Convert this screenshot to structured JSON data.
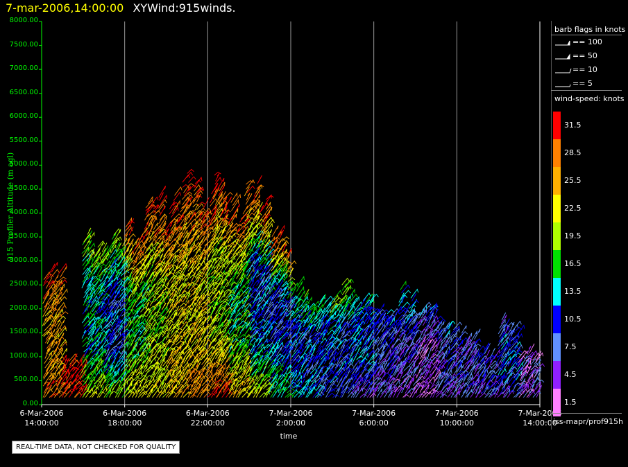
{
  "header": {
    "datetime": "7-mar-2006,14:00:00",
    "plot_name": "XYWind:915winds."
  },
  "notice": "REAL-TIME DATA, NOT CHECKED FOR QUALITY",
  "footer_path": "iss-mapr/prof915h",
  "chart_data": {
    "type": "scatter",
    "ylabel": "915 Profiler Altitude (m agl)",
    "xlabel": "time",
    "ylim": [
      0,
      8000
    ],
    "yticks": [
      "0.00",
      "500.00",
      "1000.00",
      "1500.00",
      "2000.00",
      "2500.00",
      "3000.00",
      "3500.00",
      "4000.00",
      "4500.00",
      "5000.00",
      "5500.00",
      "6000.00",
      "6500.00",
      "7000.00",
      "7500.00",
      "8000.00"
    ],
    "xlim_hours": [
      0,
      24
    ],
    "xticks": [
      {
        "date": "6-Mar-2006",
        "time": "14:00:00"
      },
      {
        "date": "6-Mar-2006",
        "time": "18:00:00"
      },
      {
        "date": "6-Mar-2006",
        "time": "22:00:00"
      },
      {
        "date": "7-Mar-2006",
        "time": "2:00:00"
      },
      {
        "date": "7-Mar-2006",
        "time": "6:00:00"
      },
      {
        "date": "7-Mar-2006",
        "time": "10:00:00"
      },
      {
        "date": "7-Mar-2006",
        "time": "14:00:00"
      }
    ],
    "grid": "vertical",
    "profiles": [
      {
        "time": "6-Mar-2006 14:00",
        "top": 3000,
        "low_speed": 28.5,
        "mid_speed": 25.5,
        "high_speed": 31.5
      },
      {
        "time": "6-Mar-2006 15:00",
        "top": 900,
        "low_speed": 31.5,
        "mid_speed": 31.5,
        "high_speed": 31.5
      },
      {
        "time": "6-Mar-2006 16:00",
        "top": 3400,
        "low_speed": 22.5,
        "mid_speed": 13.5,
        "high_speed": 19.5
      },
      {
        "time": "6-Mar-2006 17:00",
        "top": 3300,
        "low_speed": 19.5,
        "mid_speed": 10.5,
        "high_speed": 19.5
      },
      {
        "time": "6-Mar-2006 18:00",
        "top": 3600,
        "low_speed": 22.5,
        "mid_speed": 16.5,
        "high_speed": 31.5
      },
      {
        "time": "6-Mar-2006 19:00",
        "top": 4100,
        "low_speed": 22.5,
        "mid_speed": 19.5,
        "high_speed": 31.5
      },
      {
        "time": "6-Mar-2006 20:00",
        "top": 4300,
        "low_speed": 25.5,
        "mid_speed": 22.5,
        "high_speed": 31.5
      },
      {
        "time": "6-Mar-2006 21:00",
        "top": 4550,
        "low_speed": 28.5,
        "mid_speed": 22.5,
        "high_speed": 31.5
      },
      {
        "time": "6-Mar-2006 22:00",
        "top": 4600,
        "low_speed": 31.5,
        "mid_speed": 19.5,
        "high_speed": 31.5
      },
      {
        "time": "6-Mar-2006 23:00",
        "top": 4300,
        "low_speed": 25.5,
        "mid_speed": 16.5,
        "high_speed": 31.5
      },
      {
        "time": "7-Mar-2006 00:00",
        "top": 4400,
        "low_speed": 22.5,
        "mid_speed": 10.5,
        "high_speed": 31.5
      },
      {
        "time": "7-Mar-2006 01:00",
        "top": 3400,
        "low_speed": 16.5,
        "mid_speed": 10.5,
        "high_speed": 31.5
      },
      {
        "time": "7-Mar-2006 02:00",
        "top": 2300,
        "low_speed": 13.5,
        "mid_speed": 10.5,
        "high_speed": 16.5
      },
      {
        "time": "7-Mar-2006 03:00",
        "top": 2200,
        "low_speed": 10.5,
        "mid_speed": 10.5,
        "high_speed": 16.5
      },
      {
        "time": "7-Mar-2006 04:00",
        "top": 2500,
        "low_speed": 7.5,
        "mid_speed": 10.5,
        "high_speed": 19.5
      },
      {
        "time": "7-Mar-2006 05:00",
        "top": 2100,
        "low_speed": 4.5,
        "mid_speed": 10.5,
        "high_speed": 13.5
      },
      {
        "time": "7-Mar-2006 06:00",
        "top": 2100,
        "low_speed": 4.5,
        "mid_speed": 7.5,
        "high_speed": 10.5
      },
      {
        "time": "7-Mar-2006 07:00",
        "top": 2200,
        "low_speed": 1.5,
        "mid_speed": 7.5,
        "high_speed": 13.5
      },
      {
        "time": "7-Mar-2006 08:00",
        "top": 2150,
        "low_speed": 1.5,
        "mid_speed": 4.5,
        "high_speed": 10.5
      },
      {
        "time": "7-Mar-2006 09:00",
        "top": 1800,
        "low_speed": 4.5,
        "mid_speed": 7.5,
        "high_speed": 10.5
      },
      {
        "time": "7-Mar-2006 10:00",
        "top": 1400,
        "low_speed": 4.5,
        "mid_speed": 7.5,
        "high_speed": 7.5
      },
      {
        "time": "7-Mar-2006 11:00",
        "top": 1100,
        "low_speed": 4.5,
        "mid_speed": 7.5,
        "high_speed": 7.5
      },
      {
        "time": "7-Mar-2006 12:00",
        "top": 1700,
        "low_speed": 4.5,
        "mid_speed": 10.5,
        "high_speed": 7.5
      },
      {
        "time": "7-Mar-2006 13:00",
        "top": 1100,
        "low_speed": 4.5,
        "mid_speed": 4.5,
        "high_speed": 4.5
      }
    ]
  },
  "legend": {
    "barb_title": "barb flags in knots",
    "barbs": [
      {
        "label": "== 100",
        "knots": 100
      },
      {
        "label": "== 50",
        "knots": 50
      },
      {
        "label": "== 10",
        "knots": 10
      },
      {
        "label": "== 5",
        "knots": 5
      }
    ],
    "speed_title": "wind-speed: knots",
    "speed_scale": [
      {
        "label": "31.5",
        "color": "#ff0000"
      },
      {
        "label": "28.5",
        "color": "#ff8000"
      },
      {
        "label": "25.5",
        "color": "#ffb000"
      },
      {
        "label": "22.5",
        "color": "#ffff00"
      },
      {
        "label": "19.5",
        "color": "#b0ff00"
      },
      {
        "label": "16.5",
        "color": "#00e000"
      },
      {
        "label": "13.5",
        "color": "#00ffff"
      },
      {
        "label": "10.5",
        "color": "#0000ff"
      },
      {
        "label": "7.5",
        "color": "#6090ff"
      },
      {
        "label": "4.5",
        "color": "#9020ff"
      },
      {
        "label": "1.5",
        "color": "#ff80ff"
      }
    ]
  },
  "colors": {
    "axis": "#00ff00",
    "grid": "#9a9a9a",
    "header_date": "#ffff00"
  }
}
